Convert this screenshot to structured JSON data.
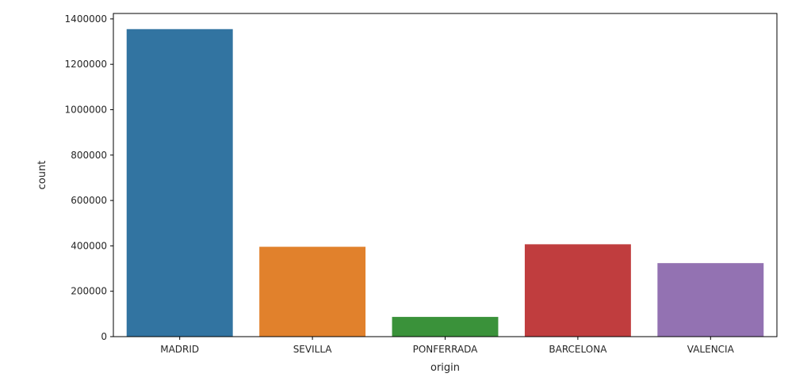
{
  "chart_data": {
    "type": "bar",
    "categories": [
      "MADRID",
      "SEVILLA",
      "PONFERRADA",
      "BARCELONA",
      "VALENCIA"
    ],
    "values": [
      1355000,
      396000,
      87000,
      407000,
      324000
    ],
    "colors": [
      "#3274a1",
      "#e1812c",
      "#3a923a",
      "#c03d3e",
      "#9372b2"
    ],
    "xlabel": "origin",
    "ylabel": "count",
    "ylim": [
      0,
      1424000
    ],
    "yticks": [
      0,
      200000,
      400000,
      600000,
      800000,
      1000000,
      1200000,
      1400000
    ],
    "ytick_labels": [
      "0",
      "200000",
      "400000",
      "600000",
      "800000",
      "1000000",
      "1200000",
      "1400000"
    ],
    "grid": false,
    "legend": "none"
  }
}
